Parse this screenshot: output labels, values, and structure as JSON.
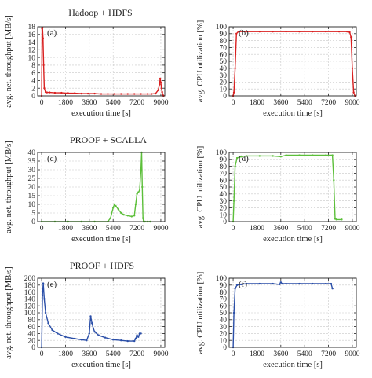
{
  "rows": [
    {
      "title": "Hadoop + HDFS"
    },
    {
      "title": "PROOF + SCALLA"
    },
    {
      "title": "PROOF + HDFS"
    }
  ],
  "colors": {
    "red": "#d92020",
    "green": "#5cbf3a",
    "blue": "#2b4fa8",
    "axis": "#222222",
    "grid": "#c8c8c8"
  },
  "chart_data": [
    {
      "id": "a",
      "tag": "(a)",
      "type": "line",
      "row": 0,
      "col": 0,
      "color": "red",
      "xlabel": "execution time [s]",
      "ylabel": "avg. net. throughput [MB/s]",
      "xlim": [
        -300,
        9300
      ],
      "ylim": [
        0,
        18
      ],
      "xticks": [
        0,
        1800,
        3600,
        5400,
        7200,
        9000
      ],
      "yticks": [
        0,
        2,
        4,
        6,
        8,
        10,
        12,
        14,
        16,
        18
      ],
      "grid": true,
      "series": [
        {
          "x": [
            0,
            30,
            60,
            100,
            150,
            200,
            300,
            400,
            600,
            1000,
            1500,
            2000,
            2500,
            3000,
            3500,
            4000,
            4500,
            5000,
            5500,
            6000,
            6500,
            7000,
            7500,
            8000,
            8300,
            8600,
            8800,
            8900,
            8950,
            9000,
            9050,
            9100,
            9150,
            9200
          ],
          "y": [
            0,
            17.5,
            17.8,
            15,
            8,
            2,
            1.0,
            0.9,
            0.9,
            0.8,
            0.8,
            0.7,
            0.7,
            0.6,
            0.6,
            0.6,
            0.5,
            0.5,
            0.5,
            0.5,
            0.5,
            0.5,
            0.5,
            0.5,
            0.5,
            0.6,
            1.5,
            3,
            4.5,
            3.5,
            2,
            1,
            0.3,
            0
          ]
        }
      ]
    },
    {
      "id": "b",
      "tag": "(b)",
      "type": "line",
      "row": 0,
      "col": 1,
      "color": "red",
      "xlabel": "execution time [s]",
      "ylabel": "avg. CPU utilization [%]",
      "xlim": [
        -300,
        9300
      ],
      "ylim": [
        0,
        100
      ],
      "xticks": [
        0,
        1800,
        3600,
        5400,
        7200,
        9000
      ],
      "yticks": [
        0,
        10,
        20,
        30,
        40,
        50,
        60,
        70,
        80,
        90,
        100
      ],
      "grid": true,
      "series": [
        {
          "x": [
            0,
            60,
            150,
            250,
            400,
            1000,
            2000,
            3000,
            4000,
            5000,
            6000,
            7000,
            8000,
            8600,
            8800,
            8900,
            9000,
            9100,
            9200
          ],
          "y": [
            0,
            5,
            40,
            90,
            93,
            93,
            93,
            93,
            93,
            93,
            93,
            93,
            93,
            93,
            92,
            85,
            40,
            5,
            0
          ]
        }
      ]
    },
    {
      "id": "c",
      "tag": "(c)",
      "type": "line",
      "row": 1,
      "col": 0,
      "color": "green",
      "xlabel": "execution time [s]",
      "ylabel": "avg. net. throughput [MB/s]",
      "xlim": [
        -300,
        9300
      ],
      "ylim": [
        0,
        40
      ],
      "xticks": [
        0,
        1800,
        3600,
        5400,
        7200,
        9000
      ],
      "yticks": [
        0,
        5,
        10,
        15,
        20,
        25,
        30,
        35,
        40
      ],
      "grid": true,
      "series": [
        {
          "x": [
            0,
            1000,
            2000,
            3000,
            4000,
            5000,
            5200,
            5400,
            5500,
            5600,
            5800,
            6000,
            6200,
            6500,
            6800,
            7000,
            7100,
            7200,
            7300,
            7400,
            7500,
            7550,
            7600,
            7650,
            7700,
            7800,
            8000,
            8200
          ],
          "y": [
            0,
            0,
            0,
            0,
            0,
            0,
            2,
            8,
            10,
            9,
            7,
            5,
            4,
            3.5,
            3,
            3.5,
            10,
            16,
            17,
            18,
            30,
            40,
            20,
            2,
            0,
            0,
            0,
            0
          ]
        }
      ]
    },
    {
      "id": "d",
      "tag": "(d)",
      "type": "line",
      "row": 1,
      "col": 1,
      "color": "green",
      "xlabel": "execution time [s]",
      "ylabel": "avg. CPU utilization [%]",
      "xlim": [
        -300,
        9300
      ],
      "ylim": [
        0,
        100
      ],
      "xticks": [
        0,
        1800,
        3600,
        5400,
        7200,
        9000
      ],
      "yticks": [
        0,
        10,
        20,
        30,
        40,
        50,
        60,
        70,
        80,
        90,
        100
      ],
      "grid": true,
      "series": [
        {
          "x": [
            0,
            60,
            150,
            300,
            600,
            1000,
            2000,
            3000,
            3600,
            4000,
            5000,
            6000,
            7000,
            7500,
            7600,
            7700,
            7800,
            8200
          ],
          "y": [
            0,
            30,
            80,
            92,
            94,
            95,
            95,
            95,
            94,
            96,
            96,
            96,
            96,
            96,
            60,
            4,
            3,
            3
          ]
        }
      ]
    },
    {
      "id": "e",
      "tag": "(e)",
      "type": "line",
      "row": 2,
      "col": 0,
      "color": "blue",
      "xlabel": "execution time [s]",
      "ylabel": "avg. net. throughput [MB/s]",
      "xlim": [
        -300,
        9300
      ],
      "ylim": [
        0,
        200
      ],
      "xticks": [
        0,
        1800,
        3600,
        5400,
        7200,
        9000
      ],
      "yticks": [
        0,
        20,
        40,
        60,
        80,
        100,
        120,
        140,
        160,
        180,
        200
      ],
      "grid": true,
      "series": [
        {
          "x": [
            0,
            60,
            120,
            200,
            300,
            500,
            800,
            1200,
            1800,
            2500,
            3000,
            3400,
            3600,
            3700,
            3800,
            3900,
            4000,
            4300,
            4800,
            5400,
            6000,
            6500,
            7000,
            7100,
            7200,
            7300,
            7400,
            7500
          ],
          "y": [
            0,
            150,
            185,
            140,
            100,
            70,
            50,
            40,
            30,
            25,
            22,
            20,
            40,
            90,
            70,
            55,
            45,
            35,
            28,
            22,
            20,
            18,
            18,
            25,
            35,
            30,
            40,
            40
          ]
        }
      ]
    },
    {
      "id": "f",
      "tag": "(f)",
      "type": "line",
      "row": 2,
      "col": 1,
      "color": "blue",
      "xlabel": "execution time [s]",
      "ylabel": "avg. CPU utilization [%]",
      "xlim": [
        -300,
        9300
      ],
      "ylim": [
        0,
        100
      ],
      "xticks": [
        0,
        1800,
        3600,
        5400,
        7200,
        9000
      ],
      "yticks": [
        0,
        10,
        20,
        30,
        40,
        50,
        60,
        70,
        80,
        90,
        100
      ],
      "grid": true,
      "series": [
        {
          "x": [
            0,
            60,
            150,
            300,
            600,
            1000,
            2000,
            3000,
            3500,
            3600,
            3700,
            4000,
            5000,
            6000,
            7000,
            7400,
            7500
          ],
          "y": [
            0,
            50,
            85,
            90,
            91,
            92,
            92,
            92,
            91,
            94,
            92,
            92,
            92,
            92,
            92,
            92,
            85
          ]
        }
      ]
    }
  ]
}
